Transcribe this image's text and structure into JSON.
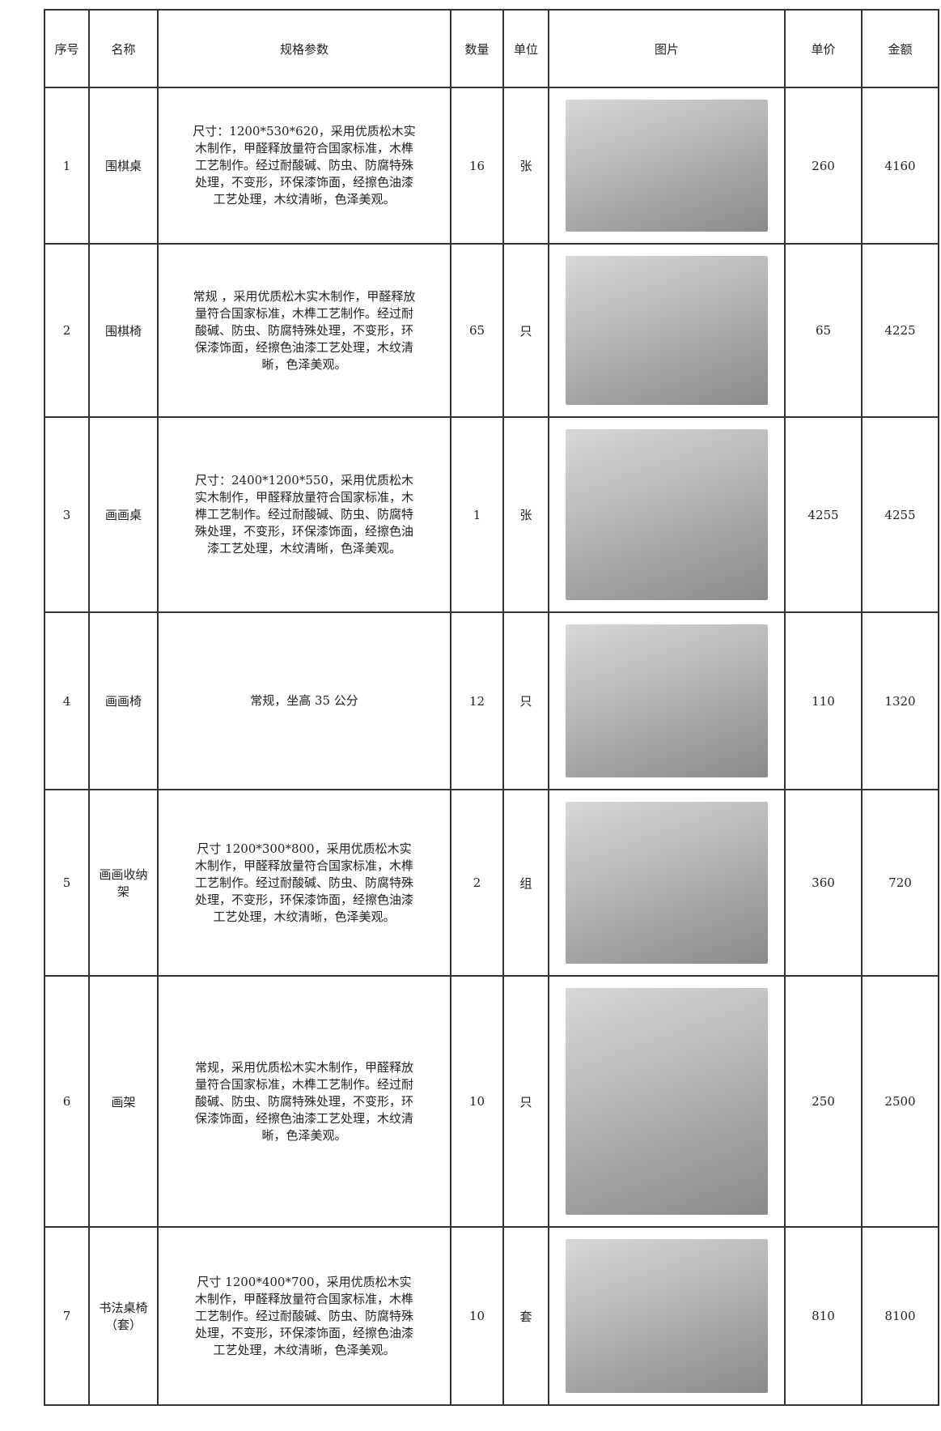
{
  "table": {
    "header": [
      "序号",
      "名称",
      "规格参数",
      "数量",
      "单位",
      "图片",
      "单价",
      "金额"
    ],
    "rows": [
      {
        "no": 1,
        "name": "围棋桌",
        "spec": "尺寸：1200*530*620，采用优质松木实木制作，甲醛释放量符合国家标准，木榫工艺制作。经过耐酸碱、防虫、防腐特殊处理，不变形，环保漆饰面，经擦色油漆工艺处理，木纹清晰，色泽美观。",
        "qty": 16,
        "unit": "张",
        "price": 260,
        "amount": 4160
      },
      {
        "no": 2,
        "name": "围棋椅",
        "spec": "常规 ，采用优质松木实木制作，甲醛释放量符合国家标准，木榫工艺制作。经过耐酸碱、防虫、防腐特殊处理，不变形，环保漆饰面，经擦色油漆工艺处理，木纹清晰，色泽美观。",
        "qty": 65,
        "unit": "只",
        "price": 65,
        "amount": 4225
      },
      {
        "no": 3,
        "name": "画画桌",
        "spec": "尺寸：2400*1200*550，采用优质松木实木制作，甲醛释放量符合国家标准，木榫工艺制作。经过耐酸碱、防虫、防腐特殊处理，不变形，环保漆饰面，经擦色油漆工艺处理，木纹清晰，色泽美观。",
        "qty": 1,
        "unit": "张",
        "price": 4255,
        "amount": 4255
      },
      {
        "no": 4,
        "name": "画画椅",
        "spec": "常规，坐高 35 公分",
        "qty": 12,
        "unit": "只",
        "price": 110,
        "amount": 1320
      },
      {
        "no": 5,
        "name": "画画收纳架",
        "spec": "尺寸 1200*300*800，采用优质松木实木制作，甲醛释放量符合国家标准，木榫工艺制作。经过耐酸碱、防虫、防腐特殊处理，不变形，环保漆饰面，经擦色油漆工艺处理，木纹清晰，色泽美观。",
        "qty": 2,
        "unit": "组",
        "price": 360,
        "amount": 720
      },
      {
        "no": 6,
        "name": "画架",
        "spec": "常规，采用优质松木实木制作，甲醛释放量符合国家标准，木榫工艺制作。经过耐酸碱、防虫、防腐特殊处理，不变形，环保漆饰面，经擦色油漆工艺处理，木纹清晰，色泽美观。",
        "qty": 10,
        "unit": "只",
        "price": 250,
        "amount": 2500
      },
      {
        "no": 7,
        "name": "书法桌椅（套）",
        "spec": "尺寸 1200*400*700，采用优质松木实木制作，甲醛释放量符合国家标准，木榫工艺制作。经过耐酸碱、防虫、防腐特殊处理，不变形，环保漆饰面，经擦色油漆工艺处理，木纹清晰，色泽美观。",
        "qty": 10,
        "unit": "套",
        "price": 810,
        "amount": 8100
      }
    ]
  }
}
